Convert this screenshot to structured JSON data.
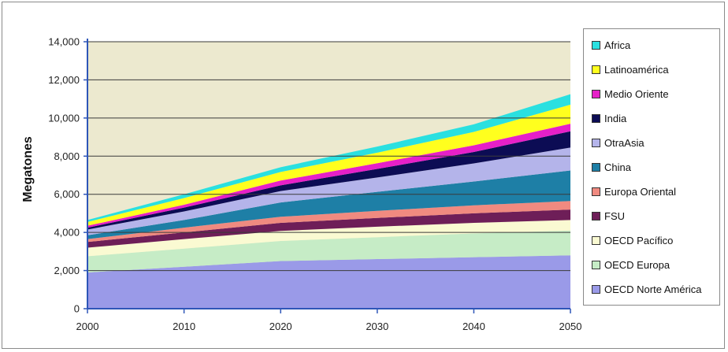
{
  "chart_data": {
    "type": "area",
    "stacked": true,
    "title": "",
    "xlabel": "",
    "ylabel": "Megatones",
    "x": [
      2000,
      2010,
      2020,
      2030,
      2040,
      2050
    ],
    "ylim": [
      0,
      14000
    ],
    "y_ticks": [
      "0",
      "2,000",
      "4,000",
      "6,000",
      "8,000",
      "10,000",
      "12,000",
      "14,000"
    ],
    "x_ticks": [
      "2000",
      "2010",
      "2020",
      "2030",
      "2040",
      "2050"
    ],
    "grid": true,
    "legend_position": "right",
    "series": [
      {
        "name": "OECD Norte América",
        "color": "#9a9ae8",
        "values": [
          1900,
          2200,
          2500,
          2600,
          2700,
          2800
        ]
      },
      {
        "name": "OECD Europa",
        "color": "#c6ecc6",
        "values": [
          850,
          950,
          1050,
          1150,
          1250,
          1300
        ]
      },
      {
        "name": "OECD Pacífico",
        "color": "#fafad2",
        "values": [
          450,
          500,
          530,
          550,
          550,
          550
        ]
      },
      {
        "name": "FSU",
        "color": "#6e1e58",
        "values": [
          300,
          350,
          420,
          460,
          500,
          550
        ]
      },
      {
        "name": "Europa Oriental",
        "color": "#f08a80",
        "values": [
          150,
          250,
          320,
          370,
          420,
          450
        ]
      },
      {
        "name": "China",
        "color": "#1e7fa6",
        "values": [
          200,
          400,
          750,
          1000,
          1250,
          1600
        ]
      },
      {
        "name": "OtraAsia",
        "color": "#b4b4ea",
        "values": [
          300,
          450,
          600,
          750,
          950,
          1200
        ]
      },
      {
        "name": "India",
        "color": "#0c0c54",
        "values": [
          100,
          200,
          300,
          450,
          600,
          850
        ]
      },
      {
        "name": "Medio Oriente",
        "color": "#e620c8",
        "values": [
          100,
          150,
          250,
          300,
          350,
          400
        ]
      },
      {
        "name": "Latinoamérica",
        "color": "#ffff1e",
        "values": [
          200,
          350,
          450,
          550,
          700,
          1000
        ]
      },
      {
        "name": "Africa",
        "color": "#2ae0e0",
        "values": [
          100,
          200,
          250,
          320,
          400,
          550
        ]
      }
    ]
  }
}
